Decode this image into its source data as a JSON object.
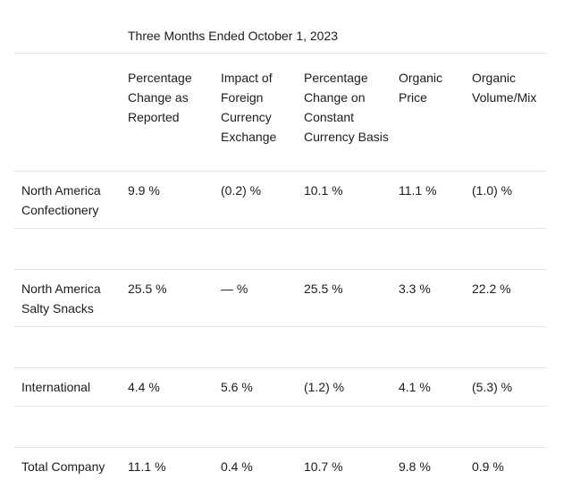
{
  "document": {
    "period_header": "Three Months Ended October 1, 2023",
    "columns": [
      "Percentage Change as Reported",
      "Impact of Foreign Currency Exchange",
      "Percentage Change on Constant Currency Basis",
      "Organic Price",
      "Organic Volume/Mix"
    ],
    "rows": [
      {
        "label": "North America Confectionery",
        "values": [
          "9.9 %",
          "(0.2) %",
          "10.1 %",
          "11.1 %",
          "(1.0) %"
        ]
      },
      {
        "label": "North America Salty Snacks",
        "values": [
          "25.5 %",
          "— %",
          "25.5 %",
          "3.3 %",
          "22.2 %"
        ]
      },
      {
        "label": "International",
        "values": [
          "4.4 %",
          "5.6 %",
          "(1.2) %",
          "4.1 %",
          "(5.3) %"
        ]
      },
      {
        "label": "Total Company",
        "values": [
          "11.1 %",
          "0.4 %",
          "10.7 %",
          "9.8 %",
          "0.9 %"
        ]
      }
    ],
    "colors": {
      "text": "#1c1c1e",
      "rule_line": "#e2e2e2",
      "background": "#ffffff"
    }
  }
}
